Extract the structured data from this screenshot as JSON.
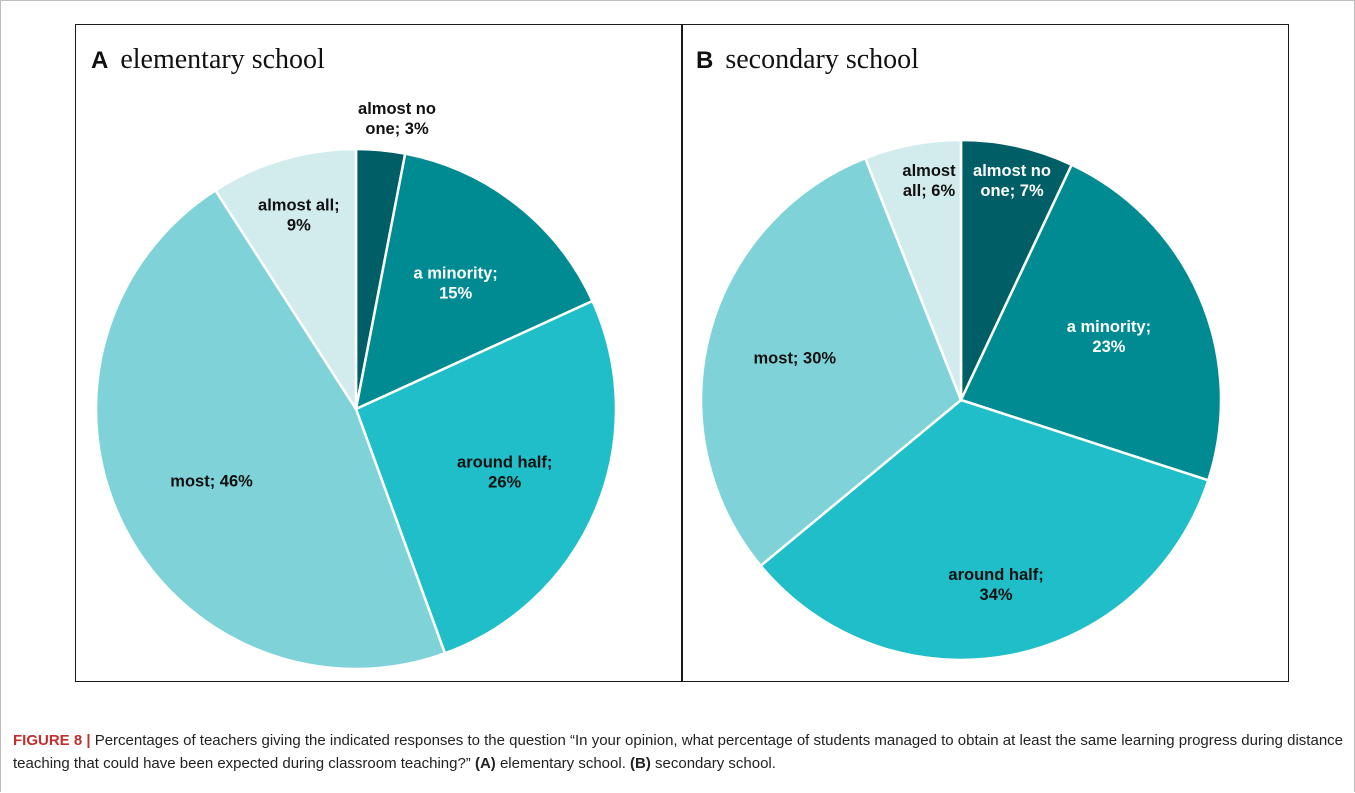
{
  "figure": {
    "panels": [
      {
        "letter": "A",
        "title": "elementary school"
      },
      {
        "letter": "B",
        "title": "secondary school"
      }
    ],
    "caption": {
      "label": "FIGURE 8 |",
      "text_1": " Percentages of teachers giving the indicated responses to the question “In your opinion, what percentage of students managed to obtain at least the same learning progress during distance teaching that could have been expected during classroom teaching?” ",
      "ref_a": "(A)",
      "text_2": " elementary school. ",
      "ref_b": "(B)",
      "text_3": " secondary school."
    }
  },
  "colors": {
    "almost_no_one": "#005F66",
    "a_minority": "#008B92",
    "around_half": "#1FBEC8",
    "most": "#7FD3D8",
    "almost_all": "#D2ECEE",
    "dark_text": "#111111",
    "light_text": "#ffffff"
  },
  "chart_data": [
    {
      "type": "pie",
      "title": "elementary school",
      "categories": [
        "almost no one",
        "a minority",
        "around half",
        "most",
        "almost all"
      ],
      "values": [
        3,
        15,
        26,
        46,
        9
      ],
      "labels": [
        [
          "almost no",
          "one; 3%"
        ],
        [
          "a minority;",
          "15%"
        ],
        [
          "around half;",
          "26%"
        ],
        [
          "most; 46%"
        ],
        [
          "almost all;",
          "9%"
        ]
      ]
    },
    {
      "type": "pie",
      "title": "secondary school",
      "categories": [
        "almost no one",
        "a minority",
        "around half",
        "most",
        "almost all"
      ],
      "values": [
        7,
        23,
        34,
        30,
        6
      ],
      "labels": [
        [
          "almost no",
          "one; 7%"
        ],
        [
          "a minority;",
          "23%"
        ],
        [
          "around half;",
          "34%"
        ],
        [
          "most; 30%"
        ],
        [
          "almost",
          "all; 6%"
        ]
      ]
    }
  ]
}
